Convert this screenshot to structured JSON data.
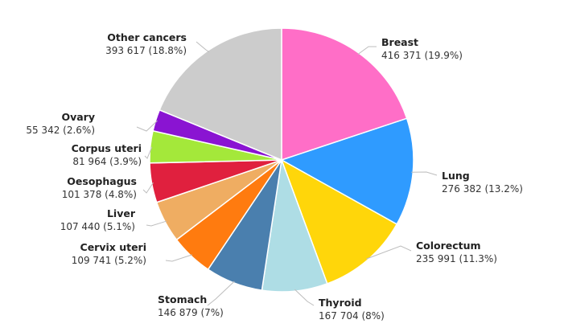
{
  "chart_data": {
    "type": "pie",
    "slices": [
      {
        "label": "Breast",
        "value": 416371,
        "pct_text": "416 371 (19.9%)",
        "color": "#ff6ec7"
      },
      {
        "label": "Lung",
        "value": 276382,
        "pct_text": "276 382 (13.2%)",
        "color": "#2f9bff"
      },
      {
        "label": "Colorectum",
        "value": 235991,
        "pct_text": "235 991 (11.3%)",
        "color": "#ffd60a"
      },
      {
        "label": "Thyroid",
        "value": 167704,
        "pct_text": "167 704 (8%)",
        "color": "#aedde5"
      },
      {
        "label": "Stomach",
        "value": 146879,
        "pct_text": "146 879 (7%)",
        "color": "#4a7fae"
      },
      {
        "label": "Cervix uteri",
        "value": 109741,
        "pct_text": "109 741 (5.2%)",
        "color": "#ff7b0f"
      },
      {
        "label": "Liver",
        "value": 107440,
        "pct_text": "107 440 (5.1%)",
        "color": "#efad62"
      },
      {
        "label": "Oesophagus",
        "value": 101378,
        "pct_text": "101 378 (4.8%)",
        "color": "#e0203e"
      },
      {
        "label": "Corpus uteri",
        "value": 81964,
        "pct_text": "81 964 (3.9%)",
        "color": "#a4e83a"
      },
      {
        "label": "Ovary",
        "value": 55342,
        "pct_text": "55 342 (2.6%)",
        "color": "#8a14d2"
      },
      {
        "label": "Other cancers",
        "value": 393617,
        "pct_text": "393 617 (18.8%)",
        "color": "#cccccc"
      }
    ],
    "start": "top",
    "direction": "clockwise"
  }
}
